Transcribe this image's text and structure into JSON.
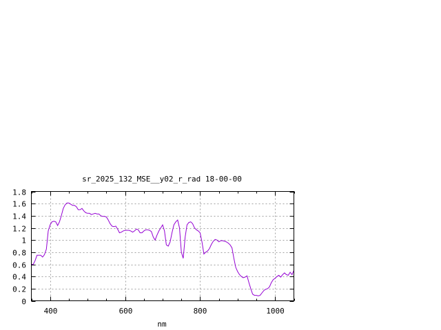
{
  "chart_data": {
    "type": "line",
    "title": "sr_2025_132_MSE__y02_r_rad 18-00-00",
    "xlabel": "nm",
    "ylabel": "",
    "xlim": [
      350,
      1050
    ],
    "ylim": [
      0,
      1.8
    ],
    "xticks": [
      400,
      600,
      800,
      1000
    ],
    "yticks": [
      0,
      0.2,
      0.4,
      0.6,
      0.8,
      1,
      1.2,
      1.4,
      1.6,
      1.8
    ],
    "xtick_labels": [
      "400",
      "600",
      "800",
      "1000"
    ],
    "ytick_labels": [
      "0",
      "0.2",
      "0.4",
      "0.6",
      "0.8",
      "1",
      "1.2",
      "1.4",
      "1.6",
      "1.8"
    ],
    "grid": true,
    "line_color": "#9400d3",
    "series": [
      {
        "x": [
          350,
          355,
          360,
          365,
          370,
          375,
          380,
          385,
          390,
          395,
          400,
          405,
          410,
          415,
          420,
          425,
          430,
          435,
          440,
          445,
          450,
          455,
          460,
          465,
          470,
          475,
          480,
          485,
          490,
          495,
          500,
          505,
          510,
          515,
          520,
          525,
          530,
          535,
          540,
          545,
          550,
          555,
          560,
          565,
          570,
          575,
          580,
          585,
          590,
          595,
          600,
          605,
          610,
          615,
          620,
          625,
          630,
          635,
          640,
          645,
          650,
          655,
          660,
          665,
          670,
          675,
          680,
          685,
          690,
          695,
          700,
          705,
          710,
          715,
          720,
          725,
          730,
          735,
          740,
          745,
          750,
          755,
          760,
          765,
          770,
          775,
          780,
          785,
          790,
          795,
          800,
          805,
          810,
          815,
          820,
          825,
          830,
          835,
          840,
          845,
          850,
          855,
          860,
          865,
          870,
          875,
          880,
          885,
          890,
          895,
          900,
          905,
          910,
          915,
          920,
          925,
          930,
          935,
          940,
          945,
          950,
          955,
          960,
          965,
          970,
          975,
          980,
          985,
          990,
          995,
          1000,
          1005,
          1010,
          1015,
          1020,
          1025,
          1030,
          1035,
          1040,
          1045,
          1050
        ],
        "values": [
          0.6,
          0.6,
          0.66,
          0.75,
          0.75,
          0.75,
          0.72,
          0.76,
          0.85,
          1.15,
          1.25,
          1.3,
          1.31,
          1.3,
          1.24,
          1.3,
          1.4,
          1.52,
          1.58,
          1.61,
          1.61,
          1.59,
          1.57,
          1.57,
          1.55,
          1.5,
          1.5,
          1.52,
          1.48,
          1.45,
          1.44,
          1.44,
          1.42,
          1.43,
          1.44,
          1.43,
          1.43,
          1.4,
          1.39,
          1.39,
          1.38,
          1.33,
          1.27,
          1.23,
          1.22,
          1.23,
          1.18,
          1.12,
          1.13,
          1.15,
          1.16,
          1.16,
          1.16,
          1.15,
          1.13,
          1.15,
          1.18,
          1.17,
          1.12,
          1.12,
          1.15,
          1.17,
          1.17,
          1.16,
          1.14,
          1.05,
          1.0,
          1.08,
          1.15,
          1.2,
          1.25,
          1.15,
          0.92,
          0.9,
          0.97,
          1.12,
          1.25,
          1.3,
          1.33,
          1.2,
          0.8,
          0.7,
          1.05,
          1.25,
          1.29,
          1.3,
          1.27,
          1.2,
          1.17,
          1.15,
          1.12,
          0.97,
          0.77,
          0.8,
          0.82,
          0.86,
          0.93,
          0.98,
          1.01,
          1.0,
          0.97,
          0.99,
          0.99,
          0.98,
          0.97,
          0.95,
          0.92,
          0.87,
          0.7,
          0.55,
          0.48,
          0.43,
          0.4,
          0.38,
          0.39,
          0.41,
          0.3,
          0.2,
          0.11,
          0.09,
          0.09,
          0.08,
          0.09,
          0.13,
          0.17,
          0.19,
          0.2,
          0.23,
          0.3,
          0.35,
          0.37,
          0.4,
          0.42,
          0.39,
          0.43,
          0.46,
          0.43,
          0.42,
          0.47,
          0.43,
          0.5
        ]
      }
    ]
  }
}
